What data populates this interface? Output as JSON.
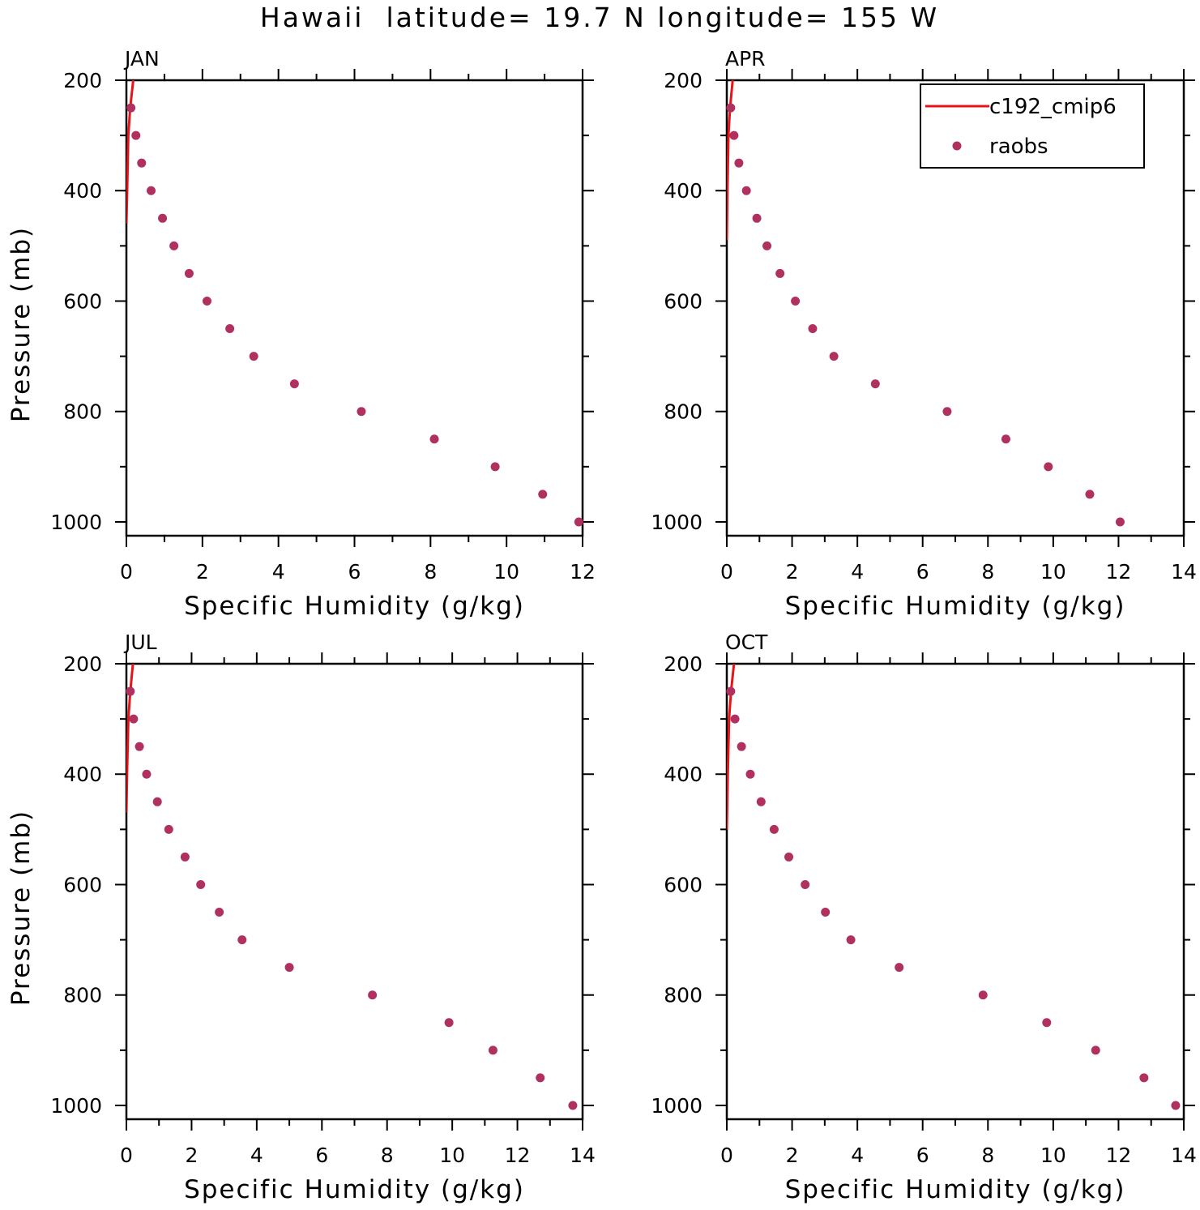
{
  "figure": {
    "title": "Hawaii  latitude= 19.7 N longitude= 155 W"
  },
  "colors": {
    "model_line": "#e8141a",
    "obs_marker": "#b03060",
    "axes": "#000000"
  },
  "legend": {
    "items": [
      {
        "label": "c192_cmip6",
        "kind": "line"
      },
      {
        "label": "raobs",
        "kind": "marker"
      }
    ]
  },
  "chart_data": [
    {
      "type": "line",
      "panel": "JAN",
      "title": "JAN",
      "xlabel": "Specific Humidity (g/kg)",
      "ylabel": "Pressure (mb)",
      "xlim": [
        0,
        12
      ],
      "xticks": [
        0,
        2,
        4,
        6,
        8,
        10,
        12
      ],
      "ylim": [
        1025,
        200
      ],
      "yticks": [
        200,
        400,
        600,
        800,
        1000
      ],
      "series": [
        {
          "name": "c192_cmip6",
          "style": "line",
          "x": [
            0.18,
            0.1,
            0.05,
            0.02,
            0.0
          ],
          "y": [
            200,
            250,
            300,
            400,
            460
          ]
        },
        {
          "name": "raobs",
          "style": "marker",
          "x": [
            0.12,
            0.25,
            0.4,
            0.65,
            0.95,
            1.25,
            1.65,
            2.12,
            2.72,
            3.35,
            4.42,
            6.18,
            8.1,
            9.7,
            10.95,
            11.9
          ],
          "y": [
            250,
            300,
            350,
            400,
            450,
            500,
            550,
            600,
            650,
            700,
            750,
            800,
            850,
            900,
            950,
            1000
          ]
        }
      ]
    },
    {
      "type": "line",
      "panel": "APR",
      "title": "APR",
      "xlabel": "Specific Humidity (g/kg)",
      "ylabel": "",
      "xlim": [
        0,
        14
      ],
      "xticks": [
        0,
        2,
        4,
        6,
        8,
        10,
        12,
        14
      ],
      "ylim": [
        1025,
        200
      ],
      "yticks": [
        200,
        400,
        600,
        800,
        1000
      ],
      "series": [
        {
          "name": "c192_cmip6",
          "style": "line",
          "x": [
            0.18,
            0.1,
            0.05,
            0.02,
            0.0
          ],
          "y": [
            200,
            250,
            300,
            400,
            490
          ]
        },
        {
          "name": "raobs",
          "style": "marker",
          "x": [
            0.12,
            0.22,
            0.37,
            0.6,
            0.92,
            1.23,
            1.63,
            2.1,
            2.63,
            3.28,
            4.55,
            6.75,
            8.55,
            9.85,
            11.12,
            12.05
          ],
          "y": [
            250,
            300,
            350,
            400,
            450,
            500,
            550,
            600,
            650,
            700,
            750,
            800,
            850,
            900,
            950,
            1000
          ]
        }
      ]
    },
    {
      "type": "line",
      "panel": "JUL",
      "title": "JUL",
      "xlabel": "Specific Humidity (g/kg)",
      "ylabel": "Pressure (mb)",
      "xlim": [
        0,
        14
      ],
      "xticks": [
        0,
        2,
        4,
        6,
        8,
        10,
        12,
        14
      ],
      "ylim": [
        1025,
        200
      ],
      "yticks": [
        200,
        400,
        600,
        800,
        1000
      ],
      "series": [
        {
          "name": "c192_cmip6",
          "style": "line",
          "x": [
            0.2,
            0.12,
            0.06,
            0.02,
            0.0
          ],
          "y": [
            200,
            250,
            300,
            400,
            470
          ]
        },
        {
          "name": "raobs",
          "style": "marker",
          "x": [
            0.12,
            0.22,
            0.4,
            0.62,
            0.95,
            1.3,
            1.8,
            2.28,
            2.85,
            3.55,
            5.0,
            7.55,
            9.9,
            11.25,
            12.7,
            13.7
          ],
          "y": [
            250,
            300,
            350,
            400,
            450,
            500,
            550,
            600,
            650,
            700,
            750,
            800,
            850,
            900,
            950,
            1000
          ]
        }
      ]
    },
    {
      "type": "line",
      "panel": "OCT",
      "title": "OCT",
      "xlabel": "Specific Humidity (g/kg)",
      "ylabel": "",
      "xlim": [
        0,
        14
      ],
      "xticks": [
        0,
        2,
        4,
        6,
        8,
        10,
        12,
        14
      ],
      "ylim": [
        1025,
        200
      ],
      "yticks": [
        200,
        400,
        600,
        800,
        1000
      ],
      "series": [
        {
          "name": "c192_cmip6",
          "style": "line",
          "x": [
            0.22,
            0.13,
            0.07,
            0.03,
            0.0
          ],
          "y": [
            200,
            250,
            300,
            400,
            500
          ]
        },
        {
          "name": "raobs",
          "style": "marker",
          "x": [
            0.12,
            0.25,
            0.45,
            0.72,
            1.05,
            1.45,
            1.9,
            2.4,
            3.02,
            3.8,
            5.28,
            7.85,
            9.8,
            11.3,
            12.78,
            13.75
          ],
          "y": [
            250,
            300,
            350,
            400,
            450,
            500,
            550,
            600,
            650,
            700,
            750,
            800,
            850,
            900,
            950,
            1000
          ]
        }
      ]
    }
  ]
}
